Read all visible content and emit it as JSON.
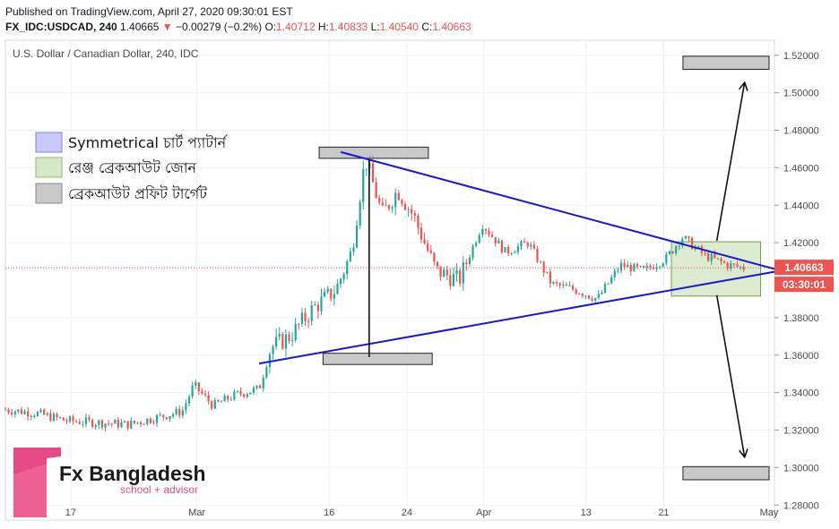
{
  "header": {
    "published": "Published on TradingView.com, April 27, 2020 09:30:01 EST",
    "symbol": "FX_IDC:USDCAD, 240",
    "last": "1.40665",
    "change": "−0.00279 (−0.2%)",
    "o_label": "O:",
    "o_value": "1.40712",
    "h_label": "H:",
    "h_value": "1.40833",
    "l_label": "L:",
    "l_value": "1.40540",
    "c_label": "C:",
    "c_value": "1.40663"
  },
  "colors": {
    "up": "#26a69a",
    "down": "#ef5350",
    "triangle": "#1616d4",
    "price_tag": "#ef5350",
    "legend_blue": "#c8c8fa",
    "legend_green": "#d6e8c8",
    "legend_gray": "#c8c8c8"
  },
  "chart_data": {
    "type": "candlestick",
    "title": "U.S. Dollar / Canadian Dollar, 240, IDC",
    "ylim": [
      1.272,
      1.528
    ],
    "y_ticks": [
      "1.52000",
      "1.50000",
      "1.48000",
      "1.46000",
      "1.44000",
      "1.42000",
      "1.38000",
      "1.36000",
      "1.34000",
      "1.32000",
      "1.30000",
      "1.28000"
    ],
    "x_ticks": [
      "17",
      "Mar",
      "16",
      "24",
      "Apr",
      "13",
      "21",
      "May"
    ],
    "price_label": "1.40663",
    "countdown_label": "03:30:01",
    "current_price": 1.40663,
    "price_path": [
      {
        "t": 0.0,
        "p": 1.331
      },
      {
        "t": 0.04,
        "p": 1.329
      },
      {
        "t": 0.08,
        "p": 1.325
      },
      {
        "t": 0.12,
        "p": 1.324
      },
      {
        "t": 0.16,
        "p": 1.323
      },
      {
        "t": 0.2,
        "p": 1.327
      },
      {
        "t": 0.23,
        "p": 1.33
      },
      {
        "t": 0.245,
        "p": 1.344
      },
      {
        "t": 0.27,
        "p": 1.333
      },
      {
        "t": 0.3,
        "p": 1.339
      },
      {
        "t": 0.33,
        "p": 1.342
      },
      {
        "t": 0.345,
        "p": 1.364
      },
      {
        "t": 0.37,
        "p": 1.37
      },
      {
        "t": 0.4,
        "p": 1.385
      },
      {
        "t": 0.43,
        "p": 1.395
      },
      {
        "t": 0.45,
        "p": 1.415
      },
      {
        "t": 0.468,
        "p": 1.465
      },
      {
        "t": 0.49,
        "p": 1.435
      },
      {
        "t": 0.51,
        "p": 1.448
      },
      {
        "t": 0.53,
        "p": 1.435
      },
      {
        "t": 0.56,
        "p": 1.405
      },
      {
        "t": 0.59,
        "p": 1.4
      },
      {
        "t": 0.62,
        "p": 1.43
      },
      {
        "t": 0.65,
        "p": 1.415
      },
      {
        "t": 0.68,
        "p": 1.42
      },
      {
        "t": 0.71,
        "p": 1.398
      },
      {
        "t": 0.74,
        "p": 1.395
      },
      {
        "t": 0.77,
        "p": 1.39
      },
      {
        "t": 0.8,
        "p": 1.408
      },
      {
        "t": 0.83,
        "p": 1.405
      },
      {
        "t": 0.86,
        "p": 1.412
      },
      {
        "t": 0.88,
        "p": 1.423
      },
      {
        "t": 0.91,
        "p": 1.413
      },
      {
        "t": 0.94,
        "p": 1.408
      },
      {
        "t": 0.96,
        "p": 1.4066
      }
    ],
    "triangle_upper": [
      {
        "t": 0.436,
        "p": 1.4684
      },
      {
        "t": 1.0,
        "p": 1.406
      }
    ],
    "triangle_lower": [
      {
        "t": 0.33,
        "p": 1.3555
      },
      {
        "t": 1.0,
        "p": 1.4045
      }
    ],
    "breakout_zone": {
      "t0": 0.866,
      "t1": 0.982,
      "p0": 1.3915,
      "p1": 1.4205
    },
    "target_zones": [
      {
        "t0": 0.408,
        "t1": 0.55,
        "p0": 1.465,
        "p1": 1.471
      },
      {
        "t0": 0.413,
        "t1": 0.555,
        "p0": 1.355,
        "p1": 1.361
      },
      {
        "t0": 0.881,
        "t1": 0.993,
        "p0": 1.5125,
        "p1": 1.5195
      },
      {
        "t0": 0.881,
        "t1": 0.993,
        "p0": 1.2935,
        "p1": 1.3005
      }
    ],
    "height_line": {
      "t": 0.473,
      "p0": 1.464,
      "p1": 1.359
    },
    "arrows": [
      {
        "t0": 0.925,
        "p0": 1.421,
        "t1": 0.961,
        "p1": 1.505
      },
      {
        "t0": 0.925,
        "p0": 1.392,
        "t1": 0.961,
        "p1": 1.306
      }
    ]
  },
  "legend": [
    {
      "label": "Symmetrical চার্ট প্যাটার্ন",
      "color": "#c8c8fa"
    },
    {
      "label": "রেঞ্জ ব্রেকআউট জোন",
      "color": "#d6e8c8"
    },
    {
      "label": "ব্রেকআউট প্রফিট টার্গেট",
      "color": "#c8c8c8"
    }
  ],
  "logo": {
    "name": "Fx Bangladesh",
    "subtitle": "school + advisor",
    "brand_color": "#e74b87"
  }
}
